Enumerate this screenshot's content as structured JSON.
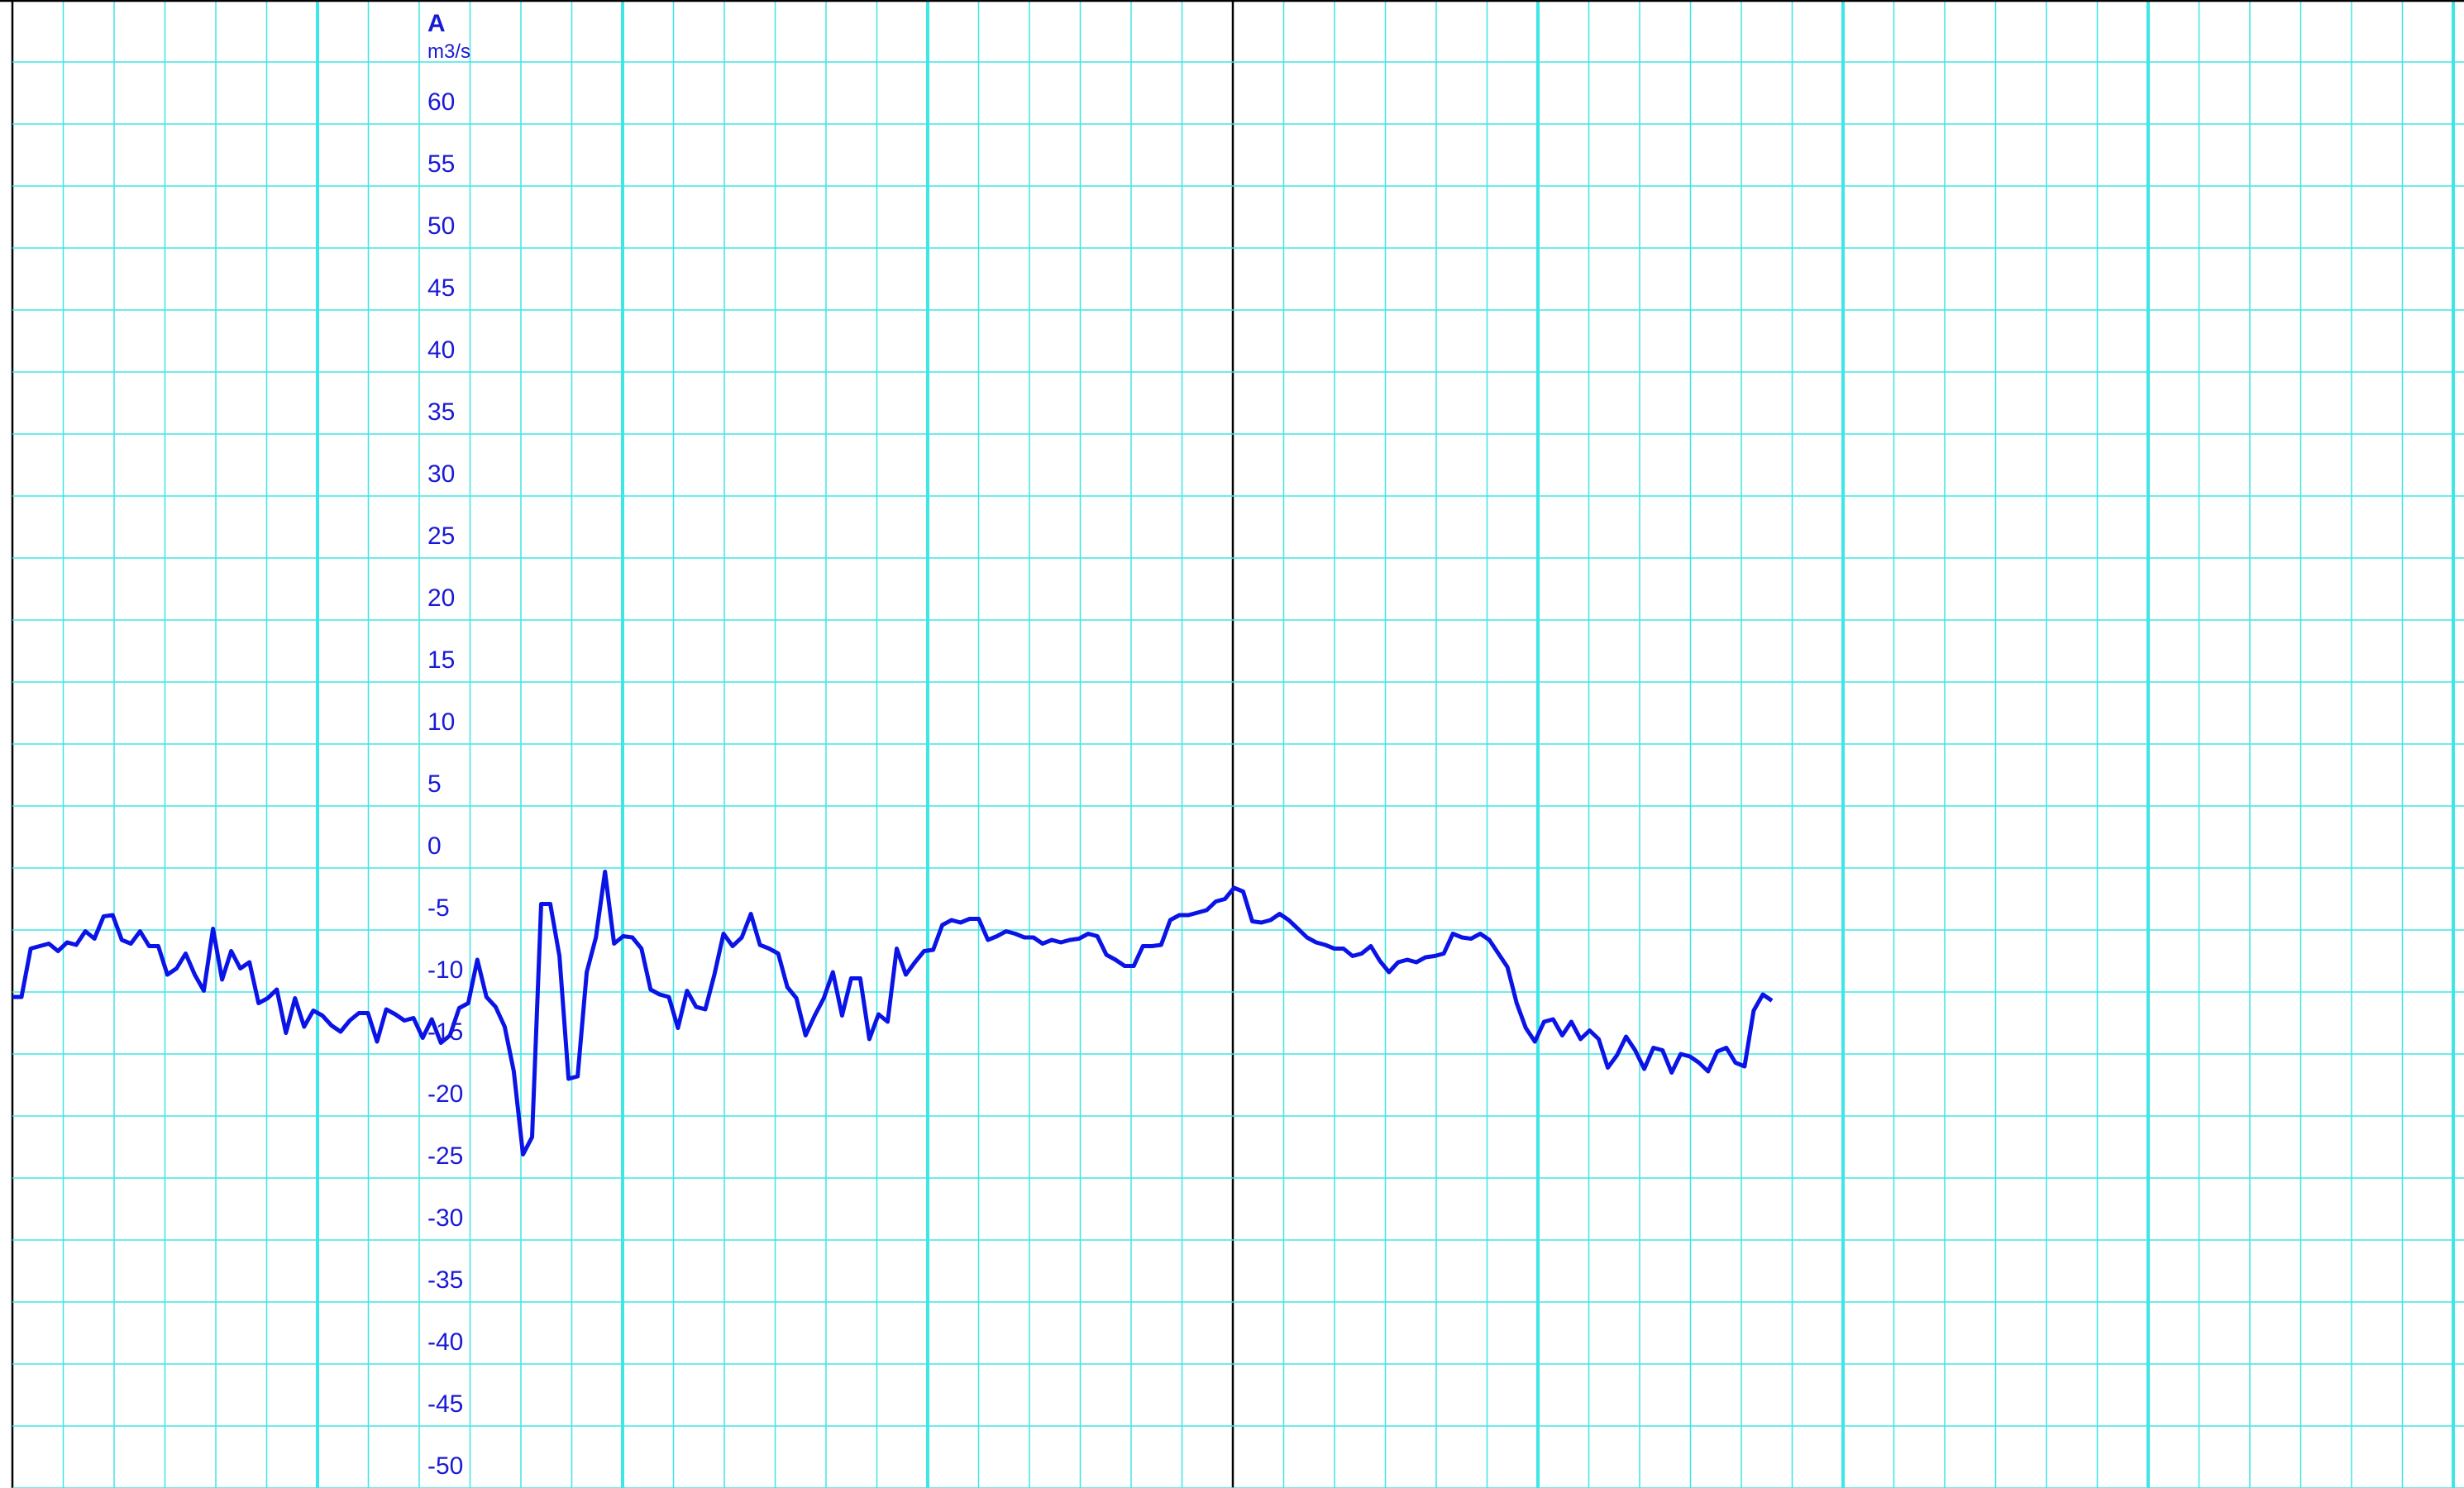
{
  "chart_data": {
    "type": "line",
    "title": "A",
    "y_label": "m3/s",
    "series": [
      {
        "name": "A",
        "color": "#0a14e6",
        "values": [
          -10.4,
          -10.4,
          -6.5,
          -6.3,
          -6.1,
          -6.7,
          -6.0,
          -6.2,
          -5.1,
          -5.7,
          -3.9,
          -3.8,
          -5.8,
          -6.1,
          -5.1,
          -6.3,
          -6.3,
          -8.6,
          -8.1,
          -6.9,
          -8.6,
          -9.9,
          -4.9,
          -9.0,
          -6.7,
          -8.1,
          -7.6,
          -10.9,
          -10.5,
          -9.8,
          -13.3,
          -10.5,
          -12.8,
          -11.5,
          -11.9,
          -12.7,
          -13.2,
          -12.3,
          -11.7,
          -11.7,
          -14.0,
          -11.4,
          -11.8,
          -12.3,
          -12.1,
          -13.7,
          -12.2,
          -14.1,
          -13.5,
          -11.3,
          -10.9,
          -7.4,
          -10.4,
          -11.2,
          -12.8,
          -16.4,
          -23.1,
          -21.7,
          -2.9,
          -2.9,
          -7.1,
          -17.0,
          -16.8,
          -8.4,
          -5.6,
          -0.3,
          -6.1,
          -5.5,
          -5.6,
          -6.5,
          -9.8,
          -10.2,
          -10.4,
          -12.9,
          -9.9,
          -11.2,
          -11.4,
          -8.6,
          -5.3,
          -6.3,
          -5.6,
          -3.7,
          -6.2,
          -6.5,
          -6.9,
          -9.6,
          -10.5,
          -13.5,
          -11.9,
          -10.5,
          -8.4,
          -11.9,
          -8.9,
          -8.9,
          -13.8,
          -11.8,
          -12.4,
          -6.5,
          -8.6,
          -7.6,
          -6.7,
          -6.6,
          -4.6,
          -4.2,
          -4.4,
          -4.1,
          -4.1,
          -5.8,
          -5.5,
          -5.1,
          -5.3,
          -5.6,
          -5.6,
          -6.1,
          -5.8,
          -6.0,
          -5.8,
          -5.7,
          -5.3,
          -5.5,
          -7.0,
          -7.4,
          -7.9,
          -7.9,
          -6.3,
          -6.3,
          -6.2,
          -4.2,
          -3.8,
          -3.8,
          -3.6,
          -3.4,
          -2.7,
          -2.5,
          -1.6,
          -1.9,
          -4.3,
          -4.4,
          -4.2,
          -3.7,
          -4.2,
          -4.9,
          -5.6,
          -6.0,
          -6.2,
          -6.5,
          -6.5,
          -7.1,
          -6.9,
          -6.3,
          -7.5,
          -8.4,
          -7.6,
          -7.4,
          -7.6,
          -7.2,
          -7.1,
          -6.9,
          -5.3,
          -5.6,
          -5.7,
          -5.3,
          -5.8,
          -6.9,
          -8.0,
          -10.9,
          -12.9,
          -14.0,
          -12.4,
          -12.2,
          -13.5,
          -12.4,
          -13.8,
          -13.1,
          -13.8,
          -16.1,
          -15.1,
          -13.6,
          -14.7,
          -16.2,
          -14.5,
          -14.7,
          -16.5,
          -15.0,
          -15.2,
          -15.7,
          -16.4,
          -14.8,
          -14.5,
          -15.7,
          -16.0,
          -11.5,
          -10.2,
          -10.7
        ]
      }
    ],
    "ylim": [
      -50,
      70
    ],
    "yticks": [
      60,
      55,
      50,
      45,
      40,
      35,
      30,
      25,
      20,
      15,
      10,
      5,
      0,
      -5,
      -10,
      -15,
      -20,
      -25,
      -30,
      -35,
      -40,
      -45,
      -50
    ],
    "grid": true,
    "grid_color": "#3ee6e6",
    "text_color": "#1a1ad6"
  }
}
